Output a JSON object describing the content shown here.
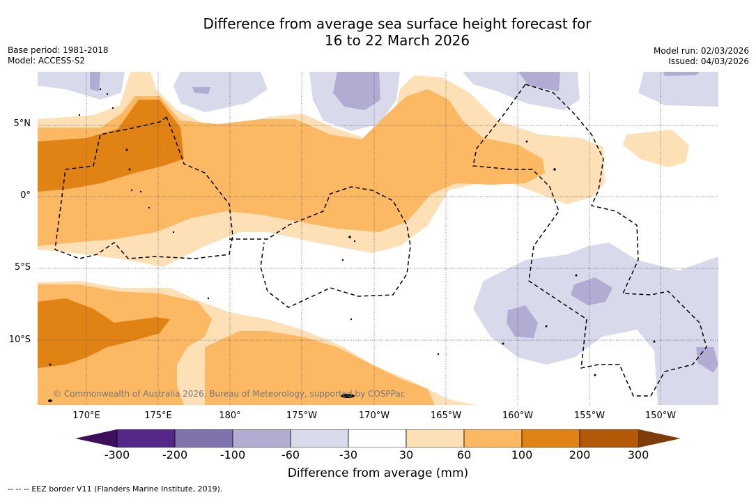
{
  "title": {
    "line1": "Difference from average sea surface height forecast for",
    "line2": "16 to 22 March 2026"
  },
  "meta_left": {
    "base_period": "Base period: 1981-2018",
    "model": "Model: ACCESS-S2"
  },
  "meta_right": {
    "model_run": "Model run: 02/03/2026",
    "issued": "Issued: 04/03/2026"
  },
  "map": {
    "lat_labels": [
      "5°N",
      "0°",
      "5°S",
      "10°S"
    ],
    "lon_labels": [
      "170°E",
      "175°E",
      "180°",
      "175°W",
      "170°W",
      "165°W",
      "160°W",
      "155°W",
      "150°W"
    ],
    "copyright": "© Commonwealth of Australia 2026, Bureau of Meteorology, supported by COSPPac"
  },
  "colorbar": {
    "title": "Difference from average (mm)",
    "ticks": [
      "-300",
      "-200",
      "-100",
      "-60",
      "-30",
      "30",
      "60",
      "100",
      "200",
      "300"
    ],
    "colors": [
      "#3d0f5a",
      "#542788",
      "#8073ac",
      "#b2abd2",
      "#d8daeb",
      "#ffffff",
      "#fee0b6",
      "#fdb863",
      "#e08214",
      "#b35806",
      "#7f3b08"
    ]
  },
  "footer": {
    "legend_symbol": "-- -- --",
    "eez_note": "EEZ border V11 (Flanders Marine Institute, 2019)."
  }
}
